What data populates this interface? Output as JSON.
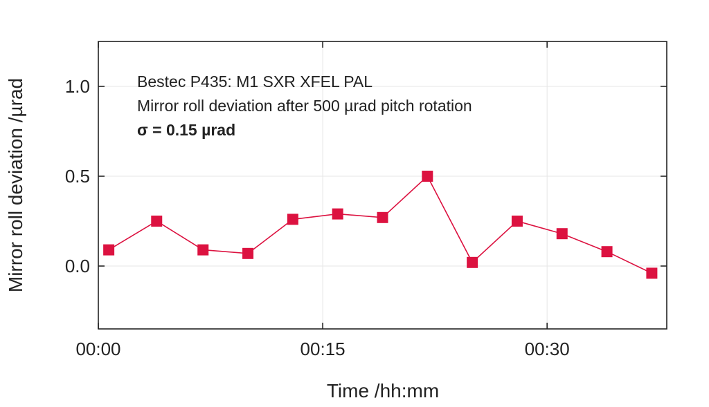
{
  "colors": {
    "series": "#dc1240",
    "frame": "#222222",
    "grid": "#e6e6e6",
    "background": "#ffffff"
  },
  "chart_data": {
    "type": "line",
    "title": "",
    "annotations": [
      "Bestec P435: M1 SXR XFEL PAL",
      "Mirror roll deviation after 500 µrad pitch rotation",
      "σ = 0.15 µrad"
    ],
    "xlabel": "Time /hh:mm",
    "ylabel": "Mirror roll deviation /µrad",
    "x_unit": "minutes",
    "xlim": [
      0,
      38
    ],
    "ylim": [
      -0.35,
      1.25
    ],
    "x_ticks": [
      {
        "value": 0,
        "label": "00:00"
      },
      {
        "value": 15,
        "label": "00:15"
      },
      {
        "value": 30,
        "label": "00:30"
      }
    ],
    "y_ticks": [
      {
        "value": 0.0,
        "label": "0.0"
      },
      {
        "value": 0.5,
        "label": "0.5"
      },
      {
        "value": 1.0,
        "label": "1.0"
      }
    ],
    "grid": true,
    "legend": "none",
    "series": [
      {
        "color": "#dc1240",
        "marker": "square",
        "x": [
          0.7,
          3.9,
          7.0,
          10.0,
          13.0,
          16.0,
          19.0,
          22.0,
          25.0,
          28.0,
          31.0,
          34.0,
          37.0
        ],
        "y": [
          0.09,
          0.25,
          0.09,
          0.07,
          0.26,
          0.29,
          0.27,
          0.5,
          0.02,
          0.25,
          0.18,
          0.08,
          -0.04
        ]
      }
    ]
  }
}
